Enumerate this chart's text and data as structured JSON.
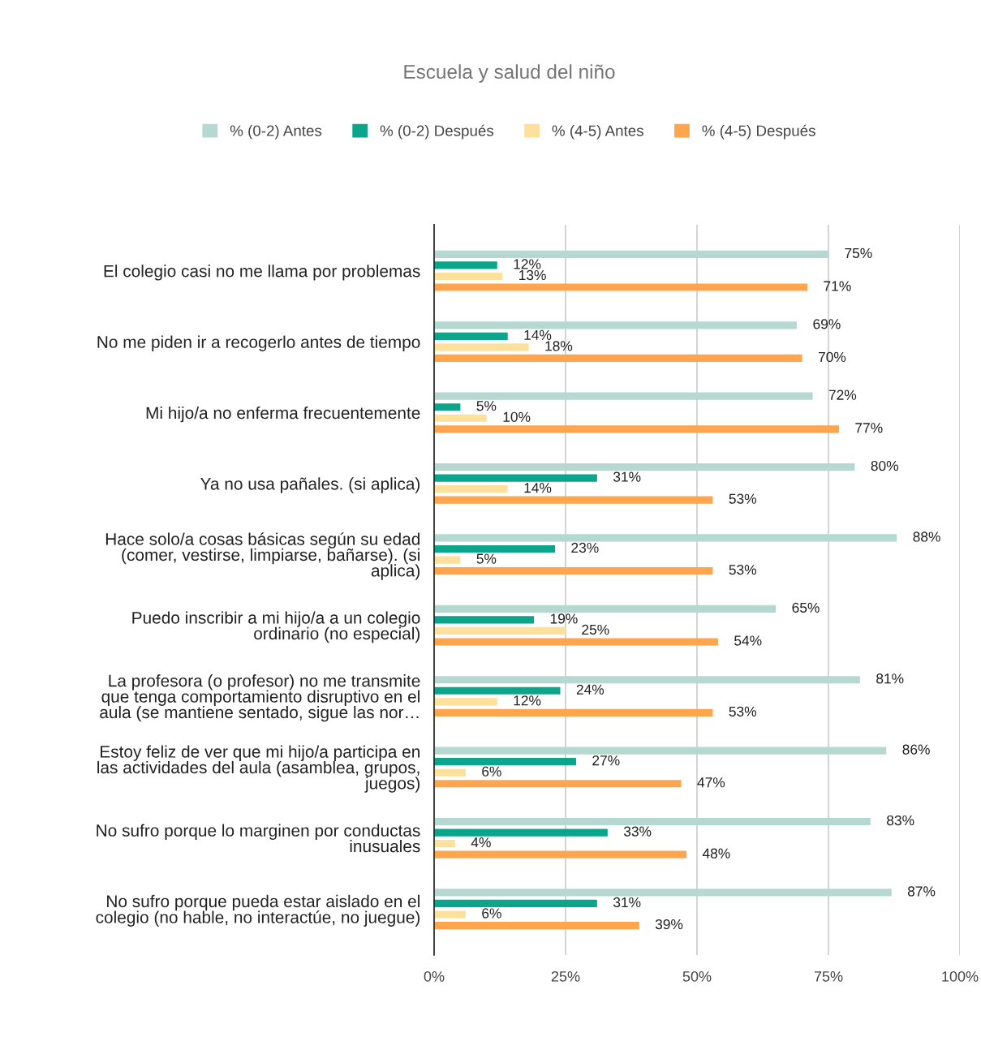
{
  "chart_data": {
    "type": "bar",
    "orientation": "horizontal",
    "title": "Escuela y salud del niño",
    "categories": [
      "El colegio casi no me llama por problemas",
      "No me piden ir a recogerlo antes de tiempo",
      "Mi hijo/a no enferma frecuentemente",
      "Ya no usa pañales. (si aplica)",
      "Hace solo/a cosas básicas según su edad\n(comer, vestirse, limpiarse, bañarse). (si\naplica)",
      "Puedo inscribir a mi hijo/a a un colegio\nordinario (no especial)",
      "La profesora (o profesor) no me transmite\nque tenga comportamiento disruptivo en el\naula (se mantiene sentado, sigue las nor…",
      "Estoy feliz de ver que mi hijo/a participa en\nlas actividades del aula (asamblea, grupos,\njuegos)",
      "No sufro porque lo marginen por conductas\ninusuales",
      "No sufro porque pueda estar aislado en el\ncolegio (no hable, no interactúe, no juegue)"
    ],
    "series": [
      {
        "name": "% (0-2) Antes",
        "color": "#b5d9d1",
        "values": [
          75,
          69,
          72,
          80,
          88,
          65,
          81,
          86,
          83,
          87
        ],
        "value_labels": [
          "75%",
          "69%",
          "72%",
          "80%",
          "88%",
          "65%",
          "81%",
          "86%",
          "83%",
          "87%"
        ]
      },
      {
        "name": "% (0-2) Después",
        "color": "#0aa58a",
        "values": [
          12,
          14,
          5,
          31,
          23,
          19,
          24,
          27,
          33,
          31
        ],
        "value_labels": [
          "12%",
          "14%",
          "5%",
          "31%",
          "23%",
          "19%",
          "24%",
          "27%",
          "33%",
          "31%"
        ]
      },
      {
        "name": "% (4-5) Antes",
        "color": "#fce09c",
        "values": [
          13,
          18,
          10,
          14,
          5,
          25,
          12,
          6,
          4,
          6
        ],
        "value_labels": [
          "13%",
          "18%",
          "10%",
          "14%",
          "5%",
          "25%",
          "12%",
          "6%",
          "4%",
          "6%"
        ]
      },
      {
        "name": "% (4-5) Después",
        "color": "#ffa54d",
        "values": [
          71,
          70,
          77,
          53,
          53,
          54,
          53,
          47,
          48,
          39
        ],
        "value_labels": [
          "71%",
          "70%",
          "77%",
          "53%",
          "53%",
          "54%",
          "53%",
          "47%",
          "48%",
          "39%"
        ]
      }
    ],
    "xlim": [
      0,
      100
    ],
    "xticks": [
      {
        "value": 0,
        "label": "0%"
      },
      {
        "value": 25,
        "label": "25%"
      },
      {
        "value": 50,
        "label": "50%"
      },
      {
        "value": 75,
        "label": "75%"
      },
      {
        "value": 100,
        "label": "100%"
      }
    ],
    "grid": "x",
    "legend": "top"
  }
}
